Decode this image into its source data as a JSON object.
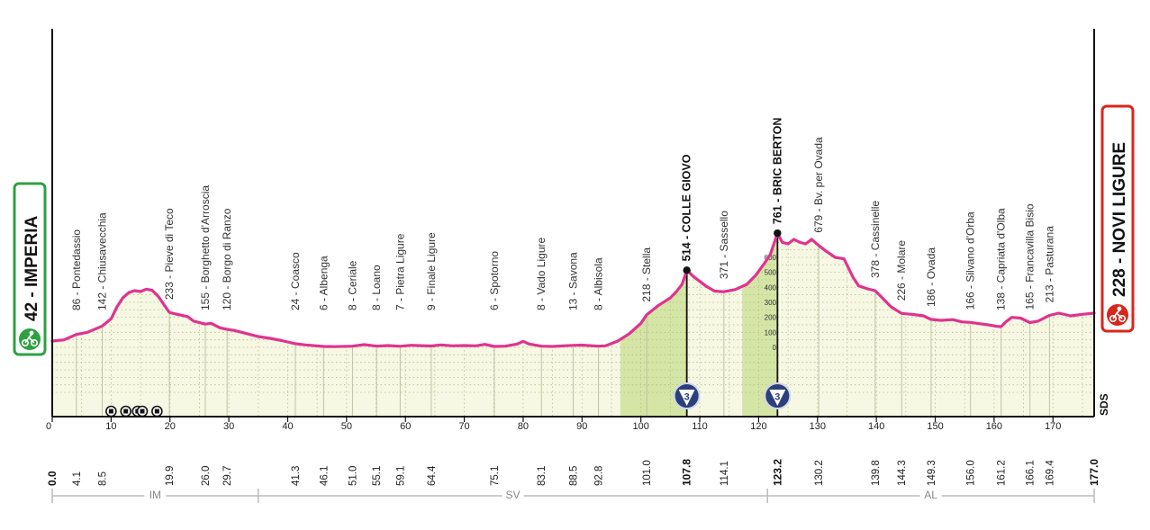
{
  "colors": {
    "profile_line": "#e0338f",
    "profile_fill": "#f6f8e3",
    "climb_fill": "#d5e5a6",
    "start_border": "#2ea043",
    "finish_border": "#d9261c",
    "region_line": "#bbbbbb",
    "grid": "#b5bd8c"
  },
  "chart_data": {
    "type": "area",
    "xlabel": "",
    "ylabel": "",
    "xlim": [
      0,
      177
    ],
    "ylim": [
      0,
      800
    ],
    "grid": true,
    "x_ticks": [
      0,
      10,
      20,
      30,
      40,
      50,
      60,
      70,
      80,
      90,
      100,
      110,
      120,
      130,
      140,
      150,
      160,
      170
    ],
    "alt_ticks": [
      0,
      100,
      200,
      300,
      400,
      500,
      600
    ],
    "profile": [
      [
        0,
        42
      ],
      [
        2,
        50
      ],
      [
        4.1,
        86
      ],
      [
        6,
        100
      ],
      [
        8.5,
        142
      ],
      [
        10,
        190
      ],
      [
        11,
        270
      ],
      [
        12,
        330
      ],
      [
        13,
        365
      ],
      [
        14,
        378
      ],
      [
        15,
        372
      ],
      [
        16,
        388
      ],
      [
        17,
        380
      ],
      [
        18,
        340
      ],
      [
        19.9,
        233
      ],
      [
        21,
        222
      ],
      [
        23,
        205
      ],
      [
        24,
        175
      ],
      [
        26,
        155
      ],
      [
        27,
        160
      ],
      [
        28.5,
        130
      ],
      [
        29.7,
        120
      ],
      [
        31,
        112
      ],
      [
        33,
        92
      ],
      [
        35,
        72
      ],
      [
        37,
        60
      ],
      [
        39,
        45
      ],
      [
        41.3,
        24
      ],
      [
        43,
        16
      ],
      [
        46.1,
        6
      ],
      [
        48,
        5
      ],
      [
        51,
        8
      ],
      [
        53,
        18
      ],
      [
        55.1,
        8
      ],
      [
        57,
        12
      ],
      [
        59.1,
        7
      ],
      [
        61,
        14
      ],
      [
        62,
        12
      ],
      [
        64.4,
        9
      ],
      [
        66,
        16
      ],
      [
        68,
        10
      ],
      [
        70,
        12
      ],
      [
        72,
        10
      ],
      [
        73.5,
        20
      ],
      [
        75.1,
        6
      ],
      [
        77,
        8
      ],
      [
        79,
        22
      ],
      [
        80,
        40
      ],
      [
        81,
        22
      ],
      [
        83.1,
        8
      ],
      [
        85,
        6
      ],
      [
        88.5,
        13
      ],
      [
        90,
        15
      ],
      [
        91,
        12
      ],
      [
        92.8,
        8
      ],
      [
        94,
        10
      ],
      [
        96,
        40
      ],
      [
        98,
        90
      ],
      [
        100,
        160
      ],
      [
        101,
        218
      ],
      [
        103,
        280
      ],
      [
        105,
        330
      ],
      [
        106,
        370
      ],
      [
        107,
        420
      ],
      [
        107.8,
        514
      ],
      [
        109,
        470
      ],
      [
        111,
        410
      ],
      [
        112.5,
        375
      ],
      [
        114.1,
        371
      ],
      [
        116,
        385
      ],
      [
        118,
        420
      ],
      [
        119.5,
        480
      ],
      [
        121,
        560
      ],
      [
        122,
        620
      ],
      [
        123.2,
        761
      ],
      [
        124,
        700
      ],
      [
        125,
        690
      ],
      [
        126,
        720
      ],
      [
        127,
        700
      ],
      [
        128,
        690
      ],
      [
        129,
        720
      ],
      [
        130.2,
        679
      ],
      [
        131.5,
        640
      ],
      [
        133,
        600
      ],
      [
        134.5,
        590
      ],
      [
        136,
        470
      ],
      [
        137,
        410
      ],
      [
        138.5,
        390
      ],
      [
        139.8,
        378
      ],
      [
        141,
        330
      ],
      [
        142.5,
        270
      ],
      [
        144.3,
        226
      ],
      [
        146,
        220
      ],
      [
        148,
        210
      ],
      [
        149.3,
        186
      ],
      [
        151,
        180
      ],
      [
        153,
        185
      ],
      [
        154.5,
        170
      ],
      [
        156,
        166
      ],
      [
        157.5,
        158
      ],
      [
        159,
        150
      ],
      [
        160.5,
        140
      ],
      [
        161.2,
        138
      ],
      [
        162,
        170
      ],
      [
        163,
        200
      ],
      [
        164.5,
        195
      ],
      [
        166.1,
        165
      ],
      [
        167.5,
        175
      ],
      [
        169.4,
        213
      ],
      [
        171,
        228
      ],
      [
        173,
        210
      ],
      [
        175,
        220
      ],
      [
        177,
        228
      ]
    ],
    "climb_sections": [
      [
        96.5,
        107.8
      ],
      [
        117.2,
        123.2
      ]
    ],
    "waypoints": [
      {
        "km": "4.1",
        "label": "86 - Pontedassio"
      },
      {
        "km": "8.5",
        "label": "142 - Chiusavecchia"
      },
      {
        "km": "19.9",
        "label": "233 - Pieve di Teco"
      },
      {
        "km": "26.0",
        "label": "155 - Borghetto d'Arroscia"
      },
      {
        "km": "29.7",
        "label": "120 - Borgo di Ranzo"
      },
      {
        "km": "41.3",
        "label": "24 - Coasco"
      },
      {
        "km": "46.1",
        "label": "6 - Albenga"
      },
      {
        "km": "51.0",
        "label": "8 - Ceriale"
      },
      {
        "km": "55.1",
        "label": "8 - Loano"
      },
      {
        "km": "59.1",
        "label": "7 - Pietra Ligure"
      },
      {
        "km": "64.4",
        "label": "9 - Finale Ligure"
      },
      {
        "km": "75.1",
        "label": "6 - Spotorno"
      },
      {
        "km": "83.1",
        "label": "8 - Vado Ligure"
      },
      {
        "km": "88.5",
        "label": "13 - Savona"
      },
      {
        "km": "92.8",
        "label": "8 - Albisola"
      },
      {
        "km": "101.0",
        "label": "218 - Stella"
      },
      {
        "km": "107.8",
        "label": "514 - COLLE GIOVO",
        "kom": true,
        "category": "3",
        "altitude": 514
      },
      {
        "km": "114.1",
        "label": "371 - Sassello"
      },
      {
        "km": "123.2",
        "label": "761 - BRIC BERTON",
        "kom": true,
        "category": "3",
        "altitude": 761
      },
      {
        "km": "130.2",
        "label": "679 - Bv. per Ovada"
      },
      {
        "km": "139.8",
        "label": "378 - Cassinelle"
      },
      {
        "km": "144.3",
        "label": "226 - Molare"
      },
      {
        "km": "149.3",
        "label": "186 - Ovada"
      },
      {
        "km": "156.0",
        "label": "166 - Silvano d'Orba"
      },
      {
        "km": "161.2",
        "label": "138 - Capriata d'Olba"
      },
      {
        "km": "166.1",
        "label": "165 - Francavilla Bisio"
      },
      {
        "km": "169.4",
        "label": "213 - Pasturana"
      }
    ],
    "start": {
      "km": "0.0",
      "label": "42 - IMPERIA"
    },
    "finish": {
      "km": "177.0",
      "label": "228 - NOVI LIGURE"
    },
    "regions": [
      {
        "code": "IM",
        "from": 0,
        "to": 35
      },
      {
        "code": "SV",
        "from": 35,
        "to": 121.5
      },
      {
        "code": "AL",
        "from": 121.5,
        "to": 177
      }
    ],
    "rail_crossings_km": [
      10,
      12.5,
      14.5,
      15.3,
      17.8
    ],
    "brand": "SDS"
  }
}
